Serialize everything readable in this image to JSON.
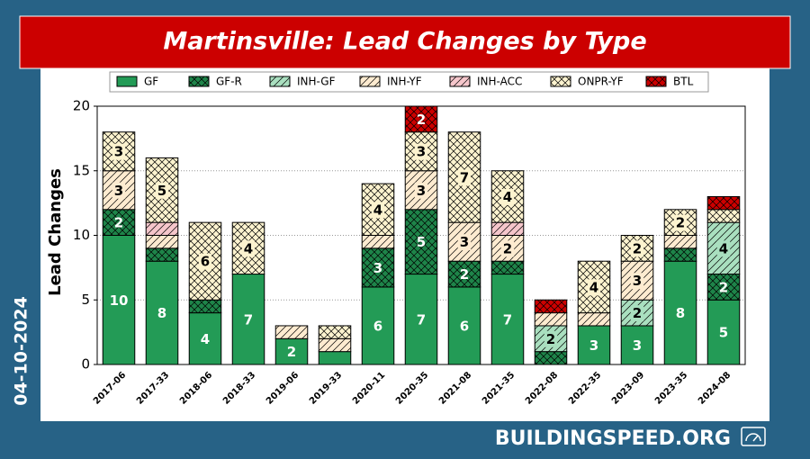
{
  "page": {
    "date": "04-10-2024",
    "site": "BUILDINGSPEED.ORG"
  },
  "chart_data": {
    "type": "stacked-bar",
    "title": "Martinsville: Lead Changes by Type",
    "ylabel": "Lead Changes",
    "categories": [
      "2017-06",
      "2017-33",
      "2018-06",
      "2018-33",
      "2019-06",
      "2019-33",
      "2020-11",
      "2020-35",
      "2021-08",
      "2021-35",
      "2022-08",
      "2022-35",
      "2023-09",
      "2023-35",
      "2024-08"
    ],
    "ylim": [
      0,
      20
    ],
    "yticks": [
      0,
      5,
      10,
      15,
      20
    ],
    "grid": true,
    "legend": "top",
    "series": [
      {
        "name": "GF",
        "color": "#239b56",
        "values": [
          10,
          8,
          4,
          7,
          2,
          1,
          6,
          7,
          6,
          7,
          0,
          3,
          3,
          8,
          5
        ]
      },
      {
        "name": "GF-R",
        "color": "#1e8449",
        "hatch": "cross",
        "values": [
          2,
          1,
          1,
          0,
          0,
          0,
          3,
          5,
          2,
          1,
          1,
          0,
          0,
          1,
          2
        ]
      },
      {
        "name": "INH-GF",
        "color": "#a9dfbf",
        "hatch": "diagonal",
        "values": [
          0,
          0,
          0,
          0,
          0,
          0,
          0,
          0,
          0,
          0,
          2,
          0,
          2,
          0,
          4
        ]
      },
      {
        "name": "INH-YF",
        "color": "#fdebd0",
        "hatch": "diagonal",
        "values": [
          3,
          1,
          0,
          0,
          1,
          1,
          1,
          3,
          3,
          2,
          1,
          1,
          3,
          1,
          0
        ]
      },
      {
        "name": "INH-ACC",
        "color": "#f5c6cb",
        "hatch": "diagonal",
        "values": [
          0,
          1,
          0,
          0,
          0,
          0,
          0,
          0,
          0,
          1,
          0,
          0,
          0,
          0,
          0
        ]
      },
      {
        "name": "ONPR-YF",
        "color": "#fcf3cf",
        "hatch": "cross",
        "values": [
          3,
          5,
          6,
          4,
          0,
          1,
          4,
          3,
          7,
          4,
          0,
          4,
          2,
          2,
          1
        ]
      },
      {
        "name": "BTL",
        "color": "#cc0000",
        "hatch": "cross",
        "values": [
          0,
          0,
          0,
          0,
          0,
          0,
          0,
          2,
          0,
          0,
          1,
          0,
          0,
          0,
          1
        ]
      }
    ]
  }
}
